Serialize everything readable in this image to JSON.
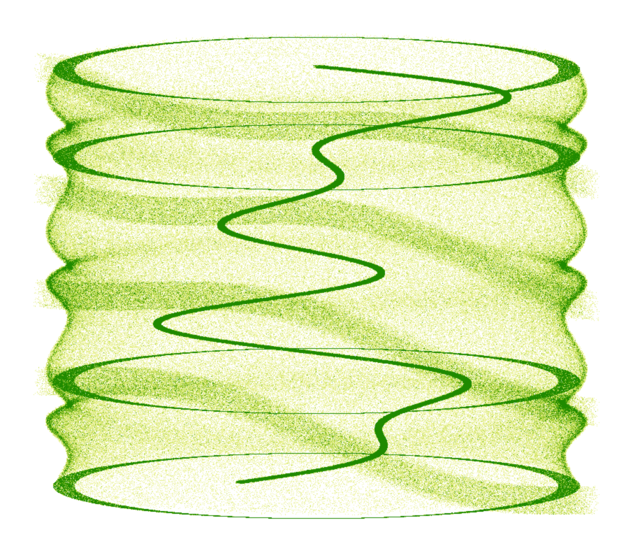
{
  "image": {
    "subject": "strange-attractor-density-plot",
    "background_color": "#ffffff",
    "palette": {
      "low": "#f6f24a",
      "mid": "#a6cf1e",
      "high": "#1f8a00"
    },
    "band_count": 3,
    "points": 420000
  }
}
